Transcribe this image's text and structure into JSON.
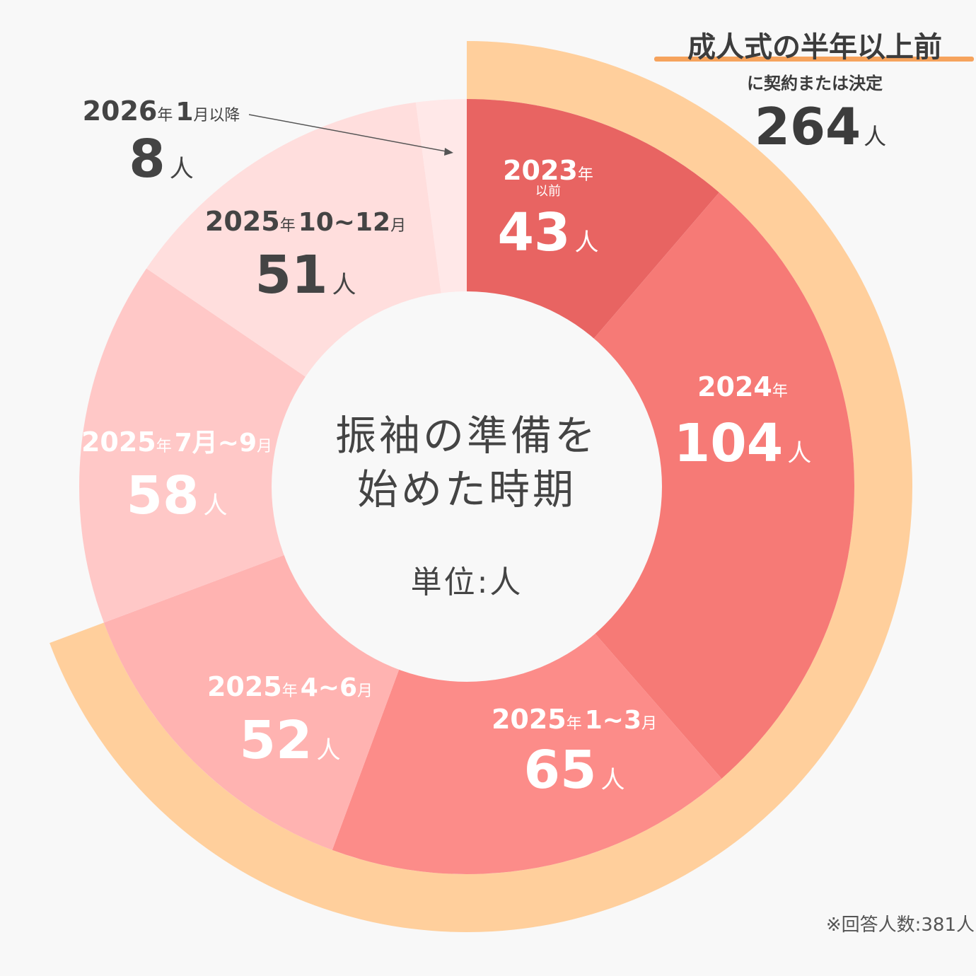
{
  "chart_data": {
    "type": "donut",
    "title": "振袖の準備を始めた時期",
    "unit_label": "単位:人",
    "total_note": "※回答人数:381人",
    "unit": "人",
    "series": [
      {
        "key": "2023",
        "period": "2023",
        "period_suffix": "年",
        "sub": "以前",
        "value": 43,
        "color": "#e86462",
        "text_color": "#ffffff"
      },
      {
        "key": "2024",
        "period": "2024",
        "period_suffix": "年",
        "sub": "",
        "value": 104,
        "color": "#f67a76",
        "text_color": "#ffffff"
      },
      {
        "key": "2025q1",
        "period": "2025",
        "period_suffix": "年",
        "range": "1~3",
        "range_suffix": "月",
        "value": 65,
        "color": "#fc8c89",
        "text_color": "#ffffff"
      },
      {
        "key": "2025q2",
        "period": "2025",
        "period_suffix": "年",
        "range": "4~6",
        "range_suffix": "月",
        "value": 52,
        "color": "#ffb3b1",
        "text_color": "#ffffff"
      },
      {
        "key": "2025q3",
        "period": "2025",
        "period_suffix": "年",
        "range": "7月~9",
        "range_suffix": "月",
        "value": 58,
        "color": "#ffc8c7",
        "text_color": "#ffffff"
      },
      {
        "key": "2025q4",
        "period": "2025",
        "period_suffix": "年",
        "range": "10~12",
        "range_suffix": "月",
        "value": 51,
        "color": "#ffdedd",
        "text_color": "#444444"
      },
      {
        "key": "2026",
        "period": "2026",
        "period_suffix": "年",
        "range": "1",
        "range_suffix": "月以降",
        "value": 8,
        "color": "#ffe8e8",
        "text_color": "#444444"
      }
    ],
    "highlight": {
      "title": "成人式の半年以上前",
      "subtitle": "に契約または決定",
      "value": 264,
      "unit": "人",
      "color": "#ffcf9c",
      "underline_color": "#f6a35d",
      "covers": [
        "2023",
        "2024",
        "2025q1",
        "2025q2"
      ]
    }
  }
}
